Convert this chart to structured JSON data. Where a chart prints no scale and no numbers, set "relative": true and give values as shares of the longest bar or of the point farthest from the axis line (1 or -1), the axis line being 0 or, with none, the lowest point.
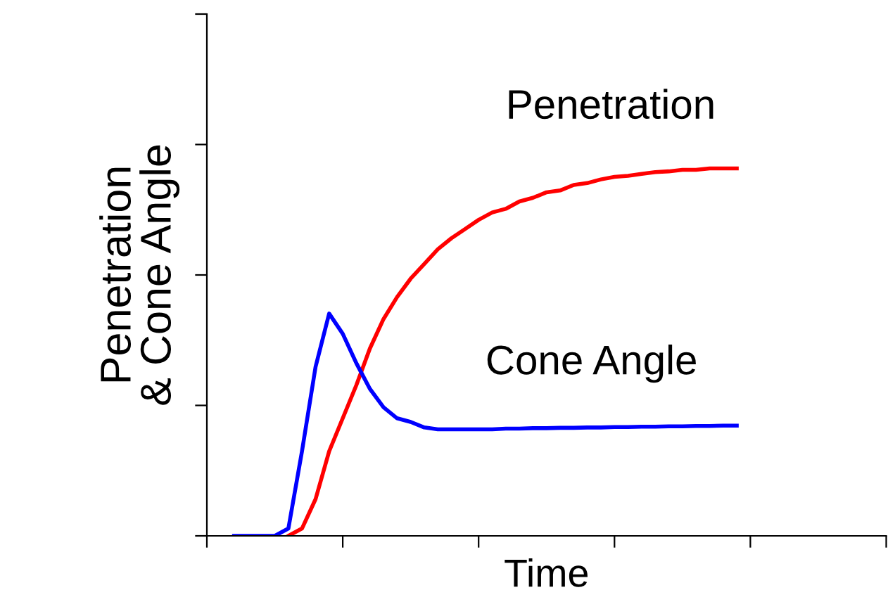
{
  "chart_data": {
    "type": "line",
    "relative": true,
    "xlabel": "Time",
    "ylabel": "Penetration\n& Cone Angle",
    "categories": [
      null,
      null,
      null,
      null,
      null,
      null,
      null,
      null,
      null,
      null,
      null,
      null,
      null,
      null,
      null,
      null,
      null,
      null,
      null,
      null,
      null,
      null,
      null,
      null,
      null,
      null,
      null,
      null,
      null,
      null,
      null,
      null,
      null,
      null,
      null,
      null,
      null,
      null,
      null,
      null,
      null,
      null,
      null,
      null,
      null,
      null,
      null,
      null,
      null,
      null,
      null
    ],
    "series": [
      {
        "name": "Penetration",
        "color": "#ff0000",
        "values": [
          null,
          null,
          null,
          null,
          null,
          null,
          0,
          0.02,
          0.1,
          0.23,
          0.32,
          0.41,
          0.51,
          0.59,
          0.65,
          0.7,
          0.74,
          0.78,
          0.81,
          0.835,
          0.86,
          0.88,
          0.89,
          0.91,
          0.92,
          0.935,
          0.94,
          0.955,
          0.96,
          0.97,
          0.977,
          0.98,
          0.985,
          0.99,
          0.992,
          0.996,
          0.996,
          1,
          1,
          1,
          null,
          null,
          null,
          null,
          null,
          null,
          null,
          null,
          null,
          null,
          null
        ]
      },
      {
        "name": "Cone Angle",
        "color": "#0000ff",
        "values": [
          null,
          null,
          0,
          0,
          0,
          0,
          0.02,
          0.23,
          0.46,
          0.605,
          0.55,
          0.47,
          0.4,
          0.35,
          0.32,
          0.31,
          0.295,
          0.29,
          0.29,
          0.29,
          0.29,
          0.29,
          0.292,
          0.292,
          0.293,
          0.293,
          0.294,
          0.294,
          0.295,
          0.295,
          0.296,
          0.296,
          0.297,
          0.297,
          0.298,
          0.298,
          0.299,
          0.299,
          0.3,
          0.3,
          null,
          null,
          null,
          null,
          null,
          null,
          null,
          null,
          null,
          null,
          null
        ]
      }
    ],
    "legend": false,
    "grid": false,
    "marker": "none",
    "line_style": "solid"
  }
}
